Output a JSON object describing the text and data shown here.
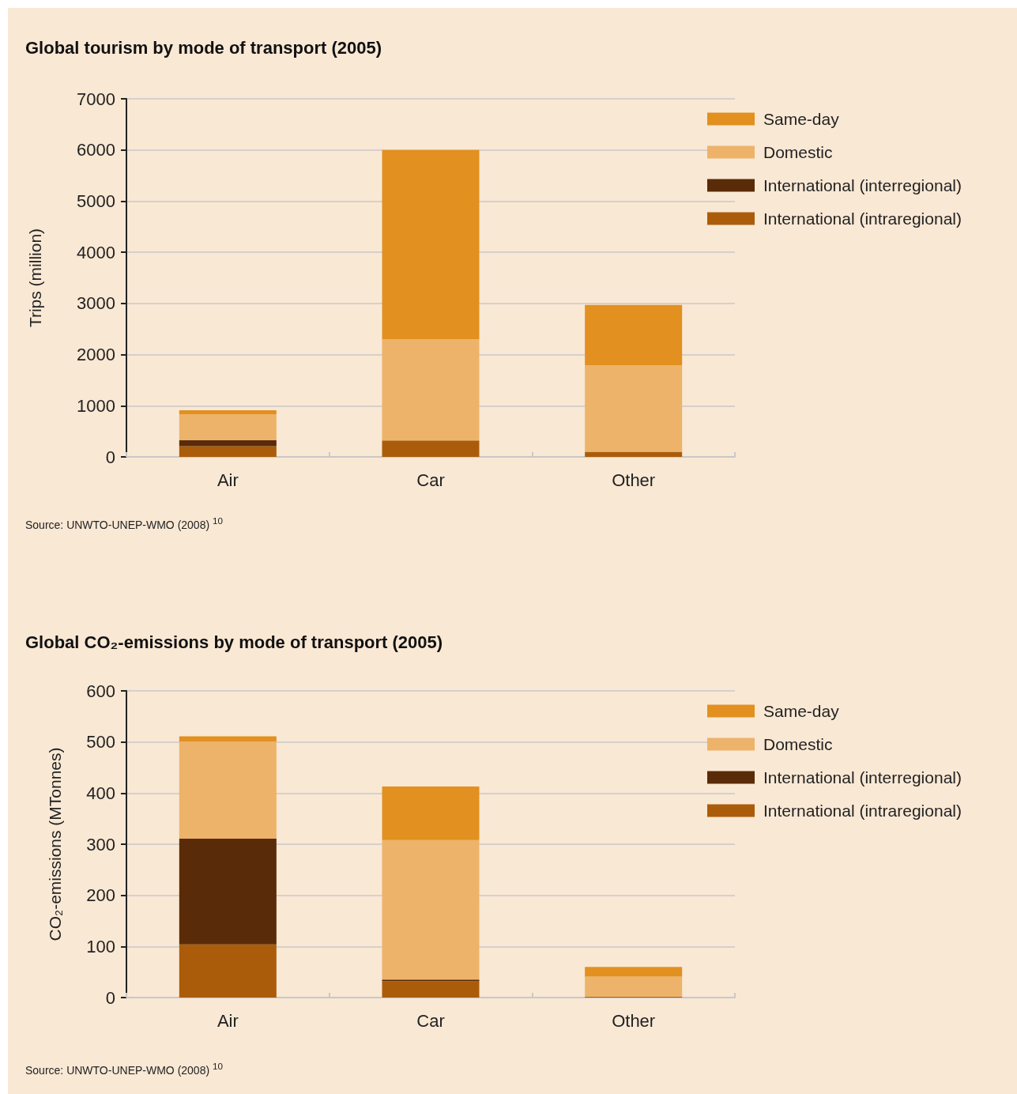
{
  "chart_data": [
    {
      "type": "bar",
      "title": "Global tourism by mode of transport (2005)",
      "ylabel": "Trips (million)",
      "categories": [
        "Air",
        "Car",
        "Other"
      ],
      "stacked": true,
      "series": [
        {
          "name": "International (intraregional)",
          "color": "#ab5c0a",
          "values": [
            210,
            320,
            100
          ]
        },
        {
          "name": "International (interregional)",
          "color": "#5a2b08",
          "values": [
            120,
            0,
            0
          ]
        },
        {
          "name": "Domestic",
          "color": "#edb36a",
          "values": [
            500,
            1980,
            1690
          ]
        },
        {
          "name": "Same-day",
          "color": "#e29020",
          "values": [
            80,
            3700,
            1180
          ]
        }
      ],
      "ylim": [
        0,
        7000
      ],
      "yticks": [
        0,
        1000,
        2000,
        3000,
        4000,
        5000,
        6000,
        7000
      ],
      "grid": "y",
      "legend": "top right",
      "annotations": [
        "Source: UNWTO-UNEP-WMO (2008) $^{10}$"
      ]
    },
    {
      "type": "bar",
      "title": "Global CO₂-emissions by mode of transport (2005)",
      "ylabel": "CO₂-emissions (MTonnes)",
      "categories": [
        "Air",
        "Car",
        "Other"
      ],
      "stacked": true,
      "series": [
        {
          "name": "International (intraregional)",
          "color": "#ab5c0a",
          "values": [
            104,
            32,
            2
          ]
        },
        {
          "name": "International (interregional)",
          "color": "#5a2b08",
          "values": [
            207,
            3,
            0
          ]
        },
        {
          "name": "Domestic",
          "color": "#edb36a",
          "values": [
            190,
            273,
            39
          ]
        },
        {
          "name": "Same-day",
          "color": "#e29020",
          "values": [
            10,
            105,
            19
          ]
        }
      ],
      "ylim": [
        0,
        600
      ],
      "yticks": [
        0,
        100,
        200,
        300,
        400,
        500,
        600
      ],
      "grid": "y",
      "legend": "top right",
      "annotations": [
        "Source: UNWTO-UNEP-WMO (2008) $^{10}$"
      ]
    }
  ]
}
